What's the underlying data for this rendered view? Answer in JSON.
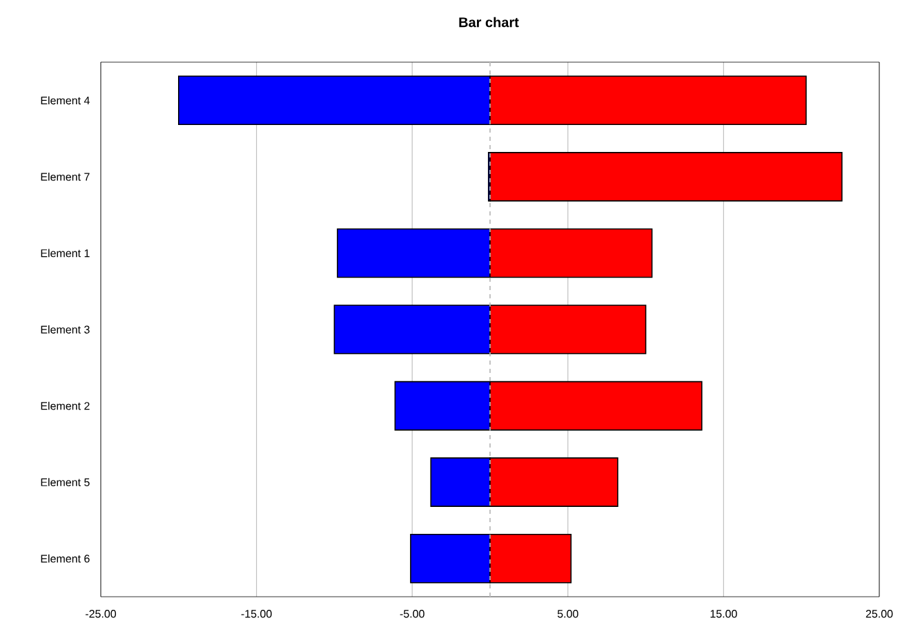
{
  "chart_data": {
    "type": "bar",
    "orientation": "horizontal",
    "stacked": true,
    "title": "Bar chart",
    "categories": [
      "Element 4",
      "Element 7",
      "Element 1",
      "Element 3",
      "Element 2",
      "Element 5",
      "Element 6"
    ],
    "series": [
      {
        "color": "#0000ff",
        "values": [
          -20.0,
          -0.1,
          -9.8,
          -10.0,
          -6.1,
          -3.8,
          -5.1
        ]
      },
      {
        "color": "#ff0000",
        "values": [
          20.3,
          22.6,
          10.4,
          10.0,
          13.6,
          8.2,
          5.2
        ]
      }
    ],
    "xlim": [
      -25,
      25
    ],
    "xticks": [
      {
        "value": -25,
        "label": "-25.00"
      },
      {
        "value": -15,
        "label": "-15.00"
      },
      {
        "value": -5,
        "label": "-5.00"
      },
      {
        "value": 5,
        "label": "5.00"
      },
      {
        "value": 15,
        "label": "15.00"
      },
      {
        "value": 25,
        "label": "25.00"
      }
    ],
    "grid": "x",
    "ref_lines": [
      {
        "axis": "x",
        "value": 0,
        "color": "#c0c0c0",
        "line_style": "dashed"
      }
    ]
  }
}
